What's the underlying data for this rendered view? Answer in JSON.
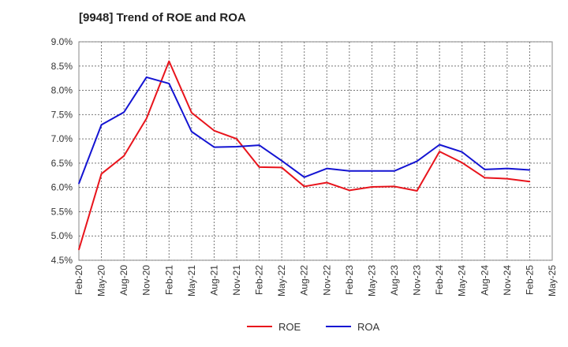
{
  "chart_data": {
    "type": "line",
    "title": "[9948]  Trend of ROE and ROA",
    "xlabel": "",
    "ylabel": "",
    "x": [
      "Feb-20",
      "May-20",
      "Aug-20",
      "Nov-20",
      "Feb-21",
      "May-21",
      "Aug-21",
      "Nov-21",
      "Feb-22",
      "May-22",
      "Aug-22",
      "Nov-22",
      "Feb-23",
      "May-23",
      "Aug-23",
      "Nov-23",
      "Feb-24",
      "May-24",
      "Aug-24",
      "Nov-24",
      "Feb-25",
      "May-25"
    ],
    "y_ticks": [
      "4.5%",
      "5.0%",
      "5.5%",
      "6.0%",
      "6.5%",
      "7.0%",
      "7.5%",
      "8.0%",
      "8.5%",
      "9.0%"
    ],
    "ylim": [
      4.5,
      9.0
    ],
    "grid": true,
    "legend_position": "bottom",
    "series": [
      {
        "name": "ROE",
        "color": "#e8141c",
        "values": [
          4.72,
          6.28,
          6.65,
          7.42,
          8.6,
          7.54,
          7.17,
          7.0,
          6.42,
          6.41,
          6.02,
          6.1,
          5.94,
          6.01,
          6.02,
          5.93,
          6.74,
          6.51,
          6.2,
          6.18,
          6.12,
          null
        ]
      },
      {
        "name": "ROA",
        "color": "#1414d2",
        "values": [
          6.08,
          7.29,
          7.55,
          8.27,
          8.14,
          7.15,
          6.83,
          6.84,
          6.87,
          6.55,
          6.21,
          6.39,
          6.34,
          6.34,
          6.34,
          6.54,
          6.88,
          6.73,
          6.37,
          6.39,
          6.36,
          null
        ]
      }
    ]
  }
}
